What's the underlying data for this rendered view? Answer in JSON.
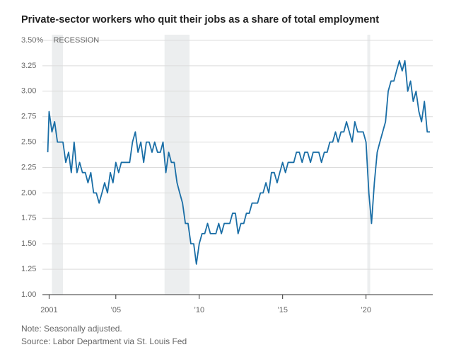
{
  "chart_data": {
    "type": "line",
    "title": "Private-sector workers who quit their jobs as a share of total employment",
    "annotation": "RECESSION",
    "note": "Note: Seasonally adjusted.",
    "source": "Source: Labor Department via St. Louis Fed",
    "color": "#1a6ea6",
    "shade_color": "#eceeef",
    "grid": true,
    "recessions": [
      [
        2001.17,
        2001.83
      ],
      [
        2007.92,
        2009.42
      ],
      [
        2020.08,
        2020.25
      ]
    ],
    "xlim": [
      2000.6,
      2024
    ],
    "xticks": [
      2001,
      {
        "value": 2005,
        "label": "’05"
      },
      {
        "value": 2010,
        "label": "’10"
      },
      {
        "value": 2015,
        "label": "’15"
      },
      {
        "value": 2020,
        "label": "’20"
      }
    ],
    "ylim": [
      1,
      3.5
    ],
    "yticks": [
      {
        "value": 1,
        "label": "1.00"
      },
      1.25,
      {
        "value": 1.5,
        "label": "1.50"
      },
      1.75,
      {
        "value": 2,
        "label": "2.00"
      },
      2.25,
      {
        "value": 2.5,
        "label": "2.50"
      },
      2.75,
      {
        "value": 3,
        "label": "3.00"
      },
      3.25,
      {
        "value": 3.5,
        "label": "3.50%"
      }
    ],
    "x": [
      2000.92,
      2001.0,
      2001.17,
      2001.33,
      2001.5,
      2001.67,
      2001.83,
      2002.0,
      2002.17,
      2002.33,
      2002.5,
      2002.67,
      2002.83,
      2003.0,
      2003.17,
      2003.33,
      2003.5,
      2003.67,
      2003.83,
      2004.0,
      2004.17,
      2004.33,
      2004.5,
      2004.67,
      2004.83,
      2005.0,
      2005.17,
      2005.33,
      2005.5,
      2005.67,
      2005.83,
      2006.0,
      2006.17,
      2006.33,
      2006.5,
      2006.67,
      2006.83,
      2007.0,
      2007.17,
      2007.33,
      2007.5,
      2007.67,
      2007.83,
      2008.0,
      2008.17,
      2008.33,
      2008.5,
      2008.67,
      2008.83,
      2009.0,
      2009.17,
      2009.33,
      2009.5,
      2009.67,
      2009.83,
      2010.0,
      2010.17,
      2010.33,
      2010.5,
      2010.67,
      2010.83,
      2011.0,
      2011.17,
      2011.33,
      2011.5,
      2011.67,
      2011.83,
      2012.0,
      2012.17,
      2012.33,
      2012.5,
      2012.67,
      2012.83,
      2013.0,
      2013.17,
      2013.33,
      2013.5,
      2013.67,
      2013.83,
      2014.0,
      2014.17,
      2014.33,
      2014.5,
      2014.67,
      2014.83,
      2015.0,
      2015.17,
      2015.33,
      2015.5,
      2015.67,
      2015.83,
      2016.0,
      2016.17,
      2016.33,
      2016.5,
      2016.67,
      2016.83,
      2017.0,
      2017.17,
      2017.33,
      2017.5,
      2017.67,
      2017.83,
      2018.0,
      2018.17,
      2018.33,
      2018.5,
      2018.67,
      2018.83,
      2019.0,
      2019.17,
      2019.33,
      2019.5,
      2019.67,
      2019.83,
      2020.0,
      2020.17,
      2020.33,
      2020.5,
      2020.67,
      2020.83,
      2021.0,
      2021.17,
      2021.33,
      2021.5,
      2021.67,
      2021.83,
      2022.0,
      2022.17,
      2022.33,
      2022.5,
      2022.67,
      2022.83,
      2023.0,
      2023.17,
      2023.33,
      2023.5,
      2023.67,
      2023.83
    ],
    "values": [
      2.4,
      2.8,
      2.6,
      2.7,
      2.5,
      2.5,
      2.5,
      2.3,
      2.4,
      2.2,
      2.5,
      2.2,
      2.3,
      2.2,
      2.2,
      2.1,
      2.2,
      2.0,
      2.0,
      1.9,
      2.0,
      2.1,
      2.0,
      2.2,
      2.1,
      2.3,
      2.2,
      2.3,
      2.3,
      2.3,
      2.3,
      2.5,
      2.6,
      2.4,
      2.5,
      2.3,
      2.5,
      2.5,
      2.4,
      2.5,
      2.4,
      2.4,
      2.5,
      2.2,
      2.4,
      2.3,
      2.3,
      2.1,
      2.0,
      1.9,
      1.7,
      1.7,
      1.5,
      1.5,
      1.3,
      1.5,
      1.6,
      1.6,
      1.7,
      1.6,
      1.6,
      1.6,
      1.7,
      1.6,
      1.7,
      1.7,
      1.7,
      1.8,
      1.8,
      1.6,
      1.7,
      1.7,
      1.8,
      1.8,
      1.9,
      1.9,
      1.9,
      2.0,
      2.0,
      2.1,
      2.0,
      2.2,
      2.2,
      2.1,
      2.2,
      2.3,
      2.2,
      2.3,
      2.3,
      2.3,
      2.4,
      2.4,
      2.3,
      2.4,
      2.4,
      2.3,
      2.4,
      2.4,
      2.4,
      2.3,
      2.4,
      2.4,
      2.5,
      2.5,
      2.6,
      2.5,
      2.6,
      2.6,
      2.7,
      2.6,
      2.5,
      2.7,
      2.6,
      2.6,
      2.6,
      2.5,
      2.0,
      1.7,
      2.1,
      2.4,
      2.5,
      2.6,
      2.7,
      3.0,
      3.1,
      3.1,
      3.2,
      3.3,
      3.2,
      3.3,
      3.0,
      3.1,
      2.9,
      3.0,
      2.8,
      2.7,
      2.9,
      2.6,
      2.6
    ]
  }
}
